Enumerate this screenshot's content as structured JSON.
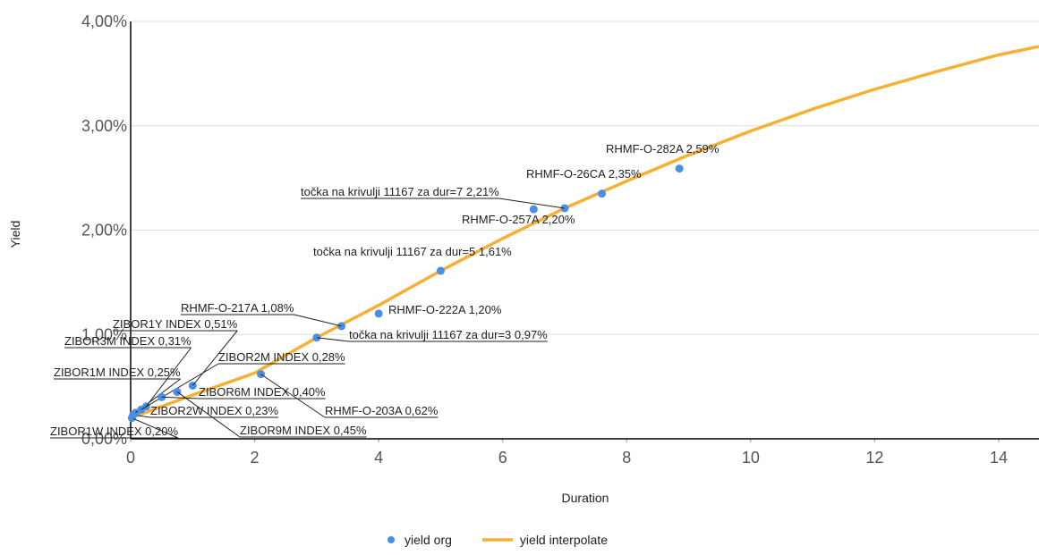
{
  "chart_data": {
    "type": "scatter",
    "x_label": "Duration",
    "y_label": "Yield",
    "xlim": [
      0,
      14.65
    ],
    "ylim": [
      0,
      4
    ],
    "xticks": [
      0,
      2,
      4,
      6,
      8,
      10,
      12,
      14
    ],
    "yticks": [
      {
        "value": 0,
        "label": "0,00%"
      },
      {
        "value": 1,
        "label": "1,00%"
      },
      {
        "value": 2,
        "label": "2,00%"
      },
      {
        "value": 3,
        "label": "3,00%"
      },
      {
        "value": 4,
        "label": "4,00%"
      }
    ],
    "grid": true,
    "legend": "bottom",
    "series": [
      {
        "name": "yield org",
        "type": "scatter",
        "color": "#4a8fe7",
        "x": [
          0.02,
          0.04,
          0.08,
          0.25,
          0.17,
          0.5,
          0.75,
          1.0,
          2.1,
          3,
          3.4,
          4.0,
          5,
          7,
          6.5,
          7.6,
          8.85
        ],
        "values": [
          0.2,
          0.23,
          0.25,
          0.31,
          0.28,
          0.4,
          0.45,
          0.51,
          0.62,
          0.97,
          1.08,
          1.2,
          1.61,
          2.21,
          2.2,
          2.35,
          2.59
        ],
        "value_labels": [
          "ZIBOR1W INDEX 0,20%",
          "ZIBOR2W INDEX 0,23%",
          "ZIBOR1M INDEX 0,25%",
          "ZIBOR3M INDEX 0,31%",
          "ZIBOR2M INDEX 0,28%",
          "ZIBOR6M INDEX 0,40%",
          "ZIBOR9M INDEX 0,45%",
          "ZIBOR1Y INDEX 0,51%",
          "RHMF-O-203A 0,62%",
          "točka na krivulji 11167 za dur=3 0,97%",
          "RHMF-O-217A 1,08%",
          "RHMF-O-222A 1,20%",
          "točka na krivulji 11167 za dur=5 1,61%",
          "točka na krivulji 11167 za dur=7 2,21%",
          "RHMF-O-257A 2,20%",
          "RHMF-O-26CA 2,35%",
          "RHMF-O-282A 2,59%"
        ]
      },
      {
        "name": "yield interpolate",
        "type": "line",
        "color": "#f7b035",
        "x": [
          0,
          1,
          2,
          3,
          4,
          5,
          6,
          7,
          8,
          9,
          10,
          11,
          12,
          13,
          14,
          14.65
        ],
        "values": [
          0.2,
          0.42,
          0.63,
          0.97,
          1.28,
          1.61,
          1.92,
          2.21,
          2.47,
          2.72,
          2.95,
          3.16,
          3.35,
          3.52,
          3.68,
          3.76
        ]
      }
    ]
  }
}
